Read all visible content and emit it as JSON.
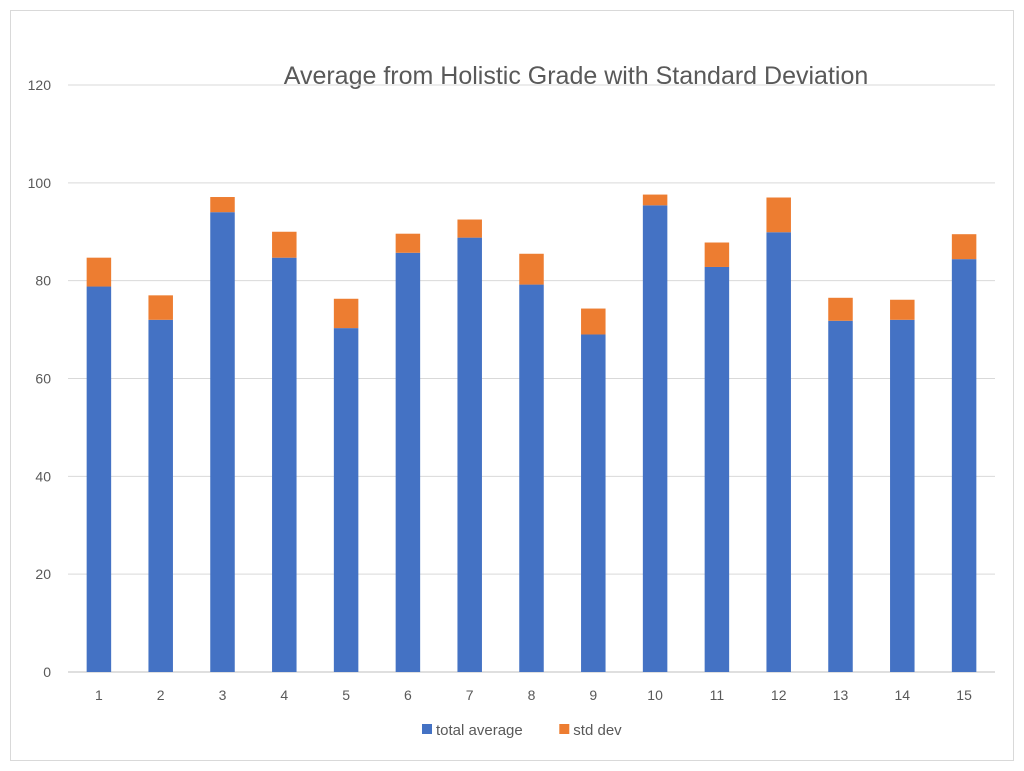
{
  "chart_data": {
    "type": "bar",
    "stacked": true,
    "title": "Average from Holistic Grade with Standard Deviation",
    "xlabel": "",
    "ylabel": "",
    "categories": [
      "1",
      "2",
      "3",
      "4",
      "5",
      "6",
      "7",
      "8",
      "9",
      "10",
      "11",
      "12",
      "13",
      "14",
      "15"
    ],
    "ylim": [
      0,
      120
    ],
    "yticks": [
      0,
      20,
      40,
      60,
      80,
      100,
      120
    ],
    "grid": true,
    "legend_position": "bottom",
    "series": [
      {
        "name": "total average",
        "color": "#4472C4",
        "values": [
          78.8,
          72.0,
          94.0,
          84.7,
          70.3,
          85.7,
          88.8,
          79.2,
          69.0,
          95.4,
          82.8,
          89.9,
          71.8,
          72.0,
          84.4
        ]
      },
      {
        "name": "std dev",
        "color": "#ED7D31",
        "values": [
          5.9,
          5.0,
          3.1,
          5.3,
          6.0,
          3.9,
          3.7,
          6.3,
          5.3,
          2.2,
          5.0,
          7.1,
          4.7,
          4.1,
          5.1
        ]
      }
    ]
  }
}
